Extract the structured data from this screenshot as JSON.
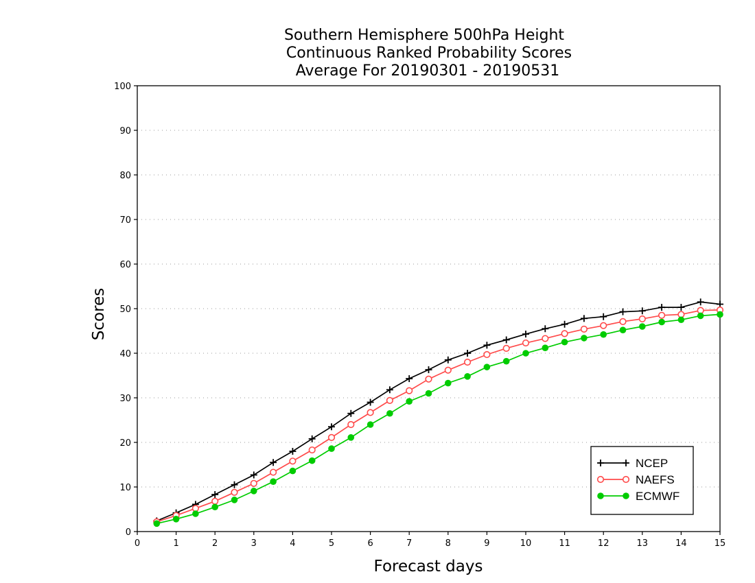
{
  "chart_data": {
    "type": "line",
    "title_lines": [
      "Southern Hemisphere 500hPa Height",
      "Continuous Ranked Probability Scores",
      "Average For 20190301 - 20190531"
    ],
    "xlabel": "Forecast days",
    "ylabel": "Scores",
    "xlim": [
      0,
      15
    ],
    "ylim": [
      0,
      100
    ],
    "x_ticks": [
      0,
      1,
      2,
      3,
      4,
      5,
      6,
      7,
      8,
      9,
      10,
      11,
      12,
      13,
      14,
      15
    ],
    "y_ticks": [
      0,
      10,
      20,
      30,
      40,
      50,
      60,
      70,
      80,
      90,
      100
    ],
    "grid": "horizontal dotted",
    "legend_position": "bottom-right",
    "x": [
      0.5,
      1,
      1.5,
      2,
      2.5,
      3,
      3.5,
      4,
      4.5,
      5,
      5.5,
      6,
      6.5,
      7,
      7.5,
      8,
      8.5,
      9,
      9.5,
      10,
      10.5,
      11,
      11.5,
      12,
      12.5,
      13,
      13.5,
      14,
      14.5,
      15
    ],
    "series": [
      {
        "name": "NCEP",
        "color": "#000000",
        "marker": "plus",
        "values": [
          2.4,
          4.2,
          6.1,
          8.3,
          10.5,
          12.7,
          15.5,
          18.0,
          20.8,
          23.5,
          26.5,
          29.0,
          31.8,
          34.3,
          36.3,
          38.5,
          40.0,
          41.8,
          43.0,
          44.3,
          45.5,
          46.5,
          47.8,
          48.2,
          49.3,
          49.5,
          50.3,
          50.3,
          51.5,
          51.0
        ]
      },
      {
        "name": "NAEFS",
        "color": "#ff4a4a",
        "marker": "open-circle",
        "values": [
          2.2,
          3.6,
          5.2,
          6.8,
          8.8,
          10.8,
          13.3,
          15.8,
          18.3,
          21.1,
          24.0,
          26.7,
          29.4,
          31.6,
          34.2,
          36.2,
          38.0,
          39.7,
          41.1,
          42.3,
          43.3,
          44.4,
          45.4,
          46.2,
          47.1,
          47.7,
          48.5,
          48.7,
          49.6,
          49.7
        ]
      },
      {
        "name": "ECMWF",
        "color": "#00cc00",
        "marker": "filled-circle",
        "values": [
          1.8,
          2.8,
          4.0,
          5.5,
          7.1,
          9.1,
          11.2,
          13.6,
          15.9,
          18.6,
          21.1,
          24.0,
          26.5,
          29.2,
          31.0,
          33.3,
          34.8,
          36.9,
          38.2,
          40.0,
          41.2,
          42.5,
          43.4,
          44.2,
          45.2,
          46.0,
          47.0,
          47.5,
          48.4,
          48.7
        ]
      }
    ]
  }
}
